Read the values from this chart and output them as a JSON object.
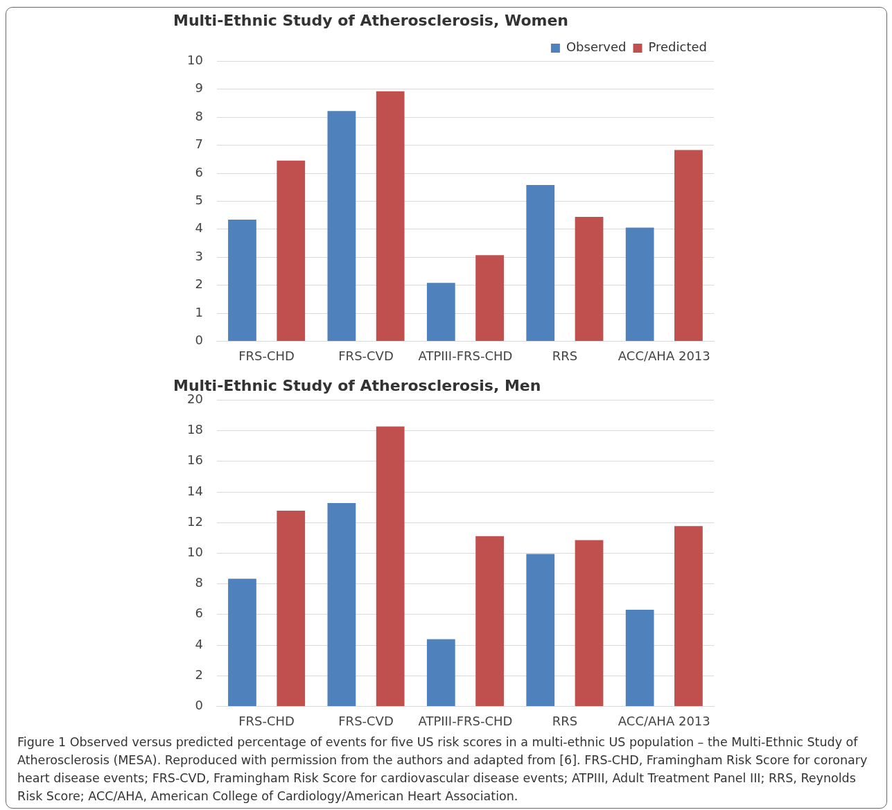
{
  "chart_data": [
    {
      "type": "bar",
      "title": "Multi-Ethnic Study of Atherosclerosis, Women",
      "categories": [
        "FRS-CHD",
        "FRS-CVD",
        "ATPIII-FRS-CHD",
        "RRS",
        "ACC/AHA 2013"
      ],
      "series": [
        {
          "name": "Observed",
          "color": "#4f81bd",
          "values": [
            4.34,
            8.22,
            2.08,
            5.58,
            4.06
          ]
        },
        {
          "name": "Predicted",
          "color": "#c0504d",
          "values": [
            6.45,
            8.93,
            3.07,
            4.44,
            6.83
          ]
        }
      ],
      "ylim": [
        0,
        10
      ],
      "yticks": [
        0,
        1,
        2,
        3,
        4,
        5,
        6,
        7,
        8,
        9,
        10
      ],
      "grid": "y",
      "legend": "top right"
    },
    {
      "type": "bar",
      "title": "Multi-Ethnic Study of Atherosclerosis, Men",
      "categories": [
        "FRS-CHD",
        "FRS-CVD",
        "ATPIII-FRS-CHD",
        "RRS",
        "ACC/AHA 2013"
      ],
      "series": [
        {
          "color": "#4f81bd",
          "values": [
            8.33,
            13.28,
            4.39,
            9.95,
            6.31
          ]
        },
        {
          "color": "#c0504d",
          "values": [
            12.78,
            18.28,
            11.11,
            10.86,
            11.77
          ]
        }
      ],
      "ylim": [
        0,
        20
      ],
      "yticks": [
        0,
        2,
        4,
        6,
        8,
        10,
        12,
        14,
        16,
        18,
        20
      ],
      "grid": "y",
      "annotations": [
        "Figure 1 Observed versus predicted percentage of events for five US risk scores in a multi-ethnic US population – the Multi-Ethnic Study of Atherosclerosis (MESA). Reproduced with permission from the authors and adapted from [6]. FRS-CHD, Framingham Risk Score for coronary heart disease events; FRS-CVD, Framingham Risk Score for cardiovascular disease events; ATPIII, Adult Treatment Panel III; RRS, Reynolds Risk Score; ACC/AHA, American College of Cardiology/American Heart Association."
      ]
    }
  ]
}
